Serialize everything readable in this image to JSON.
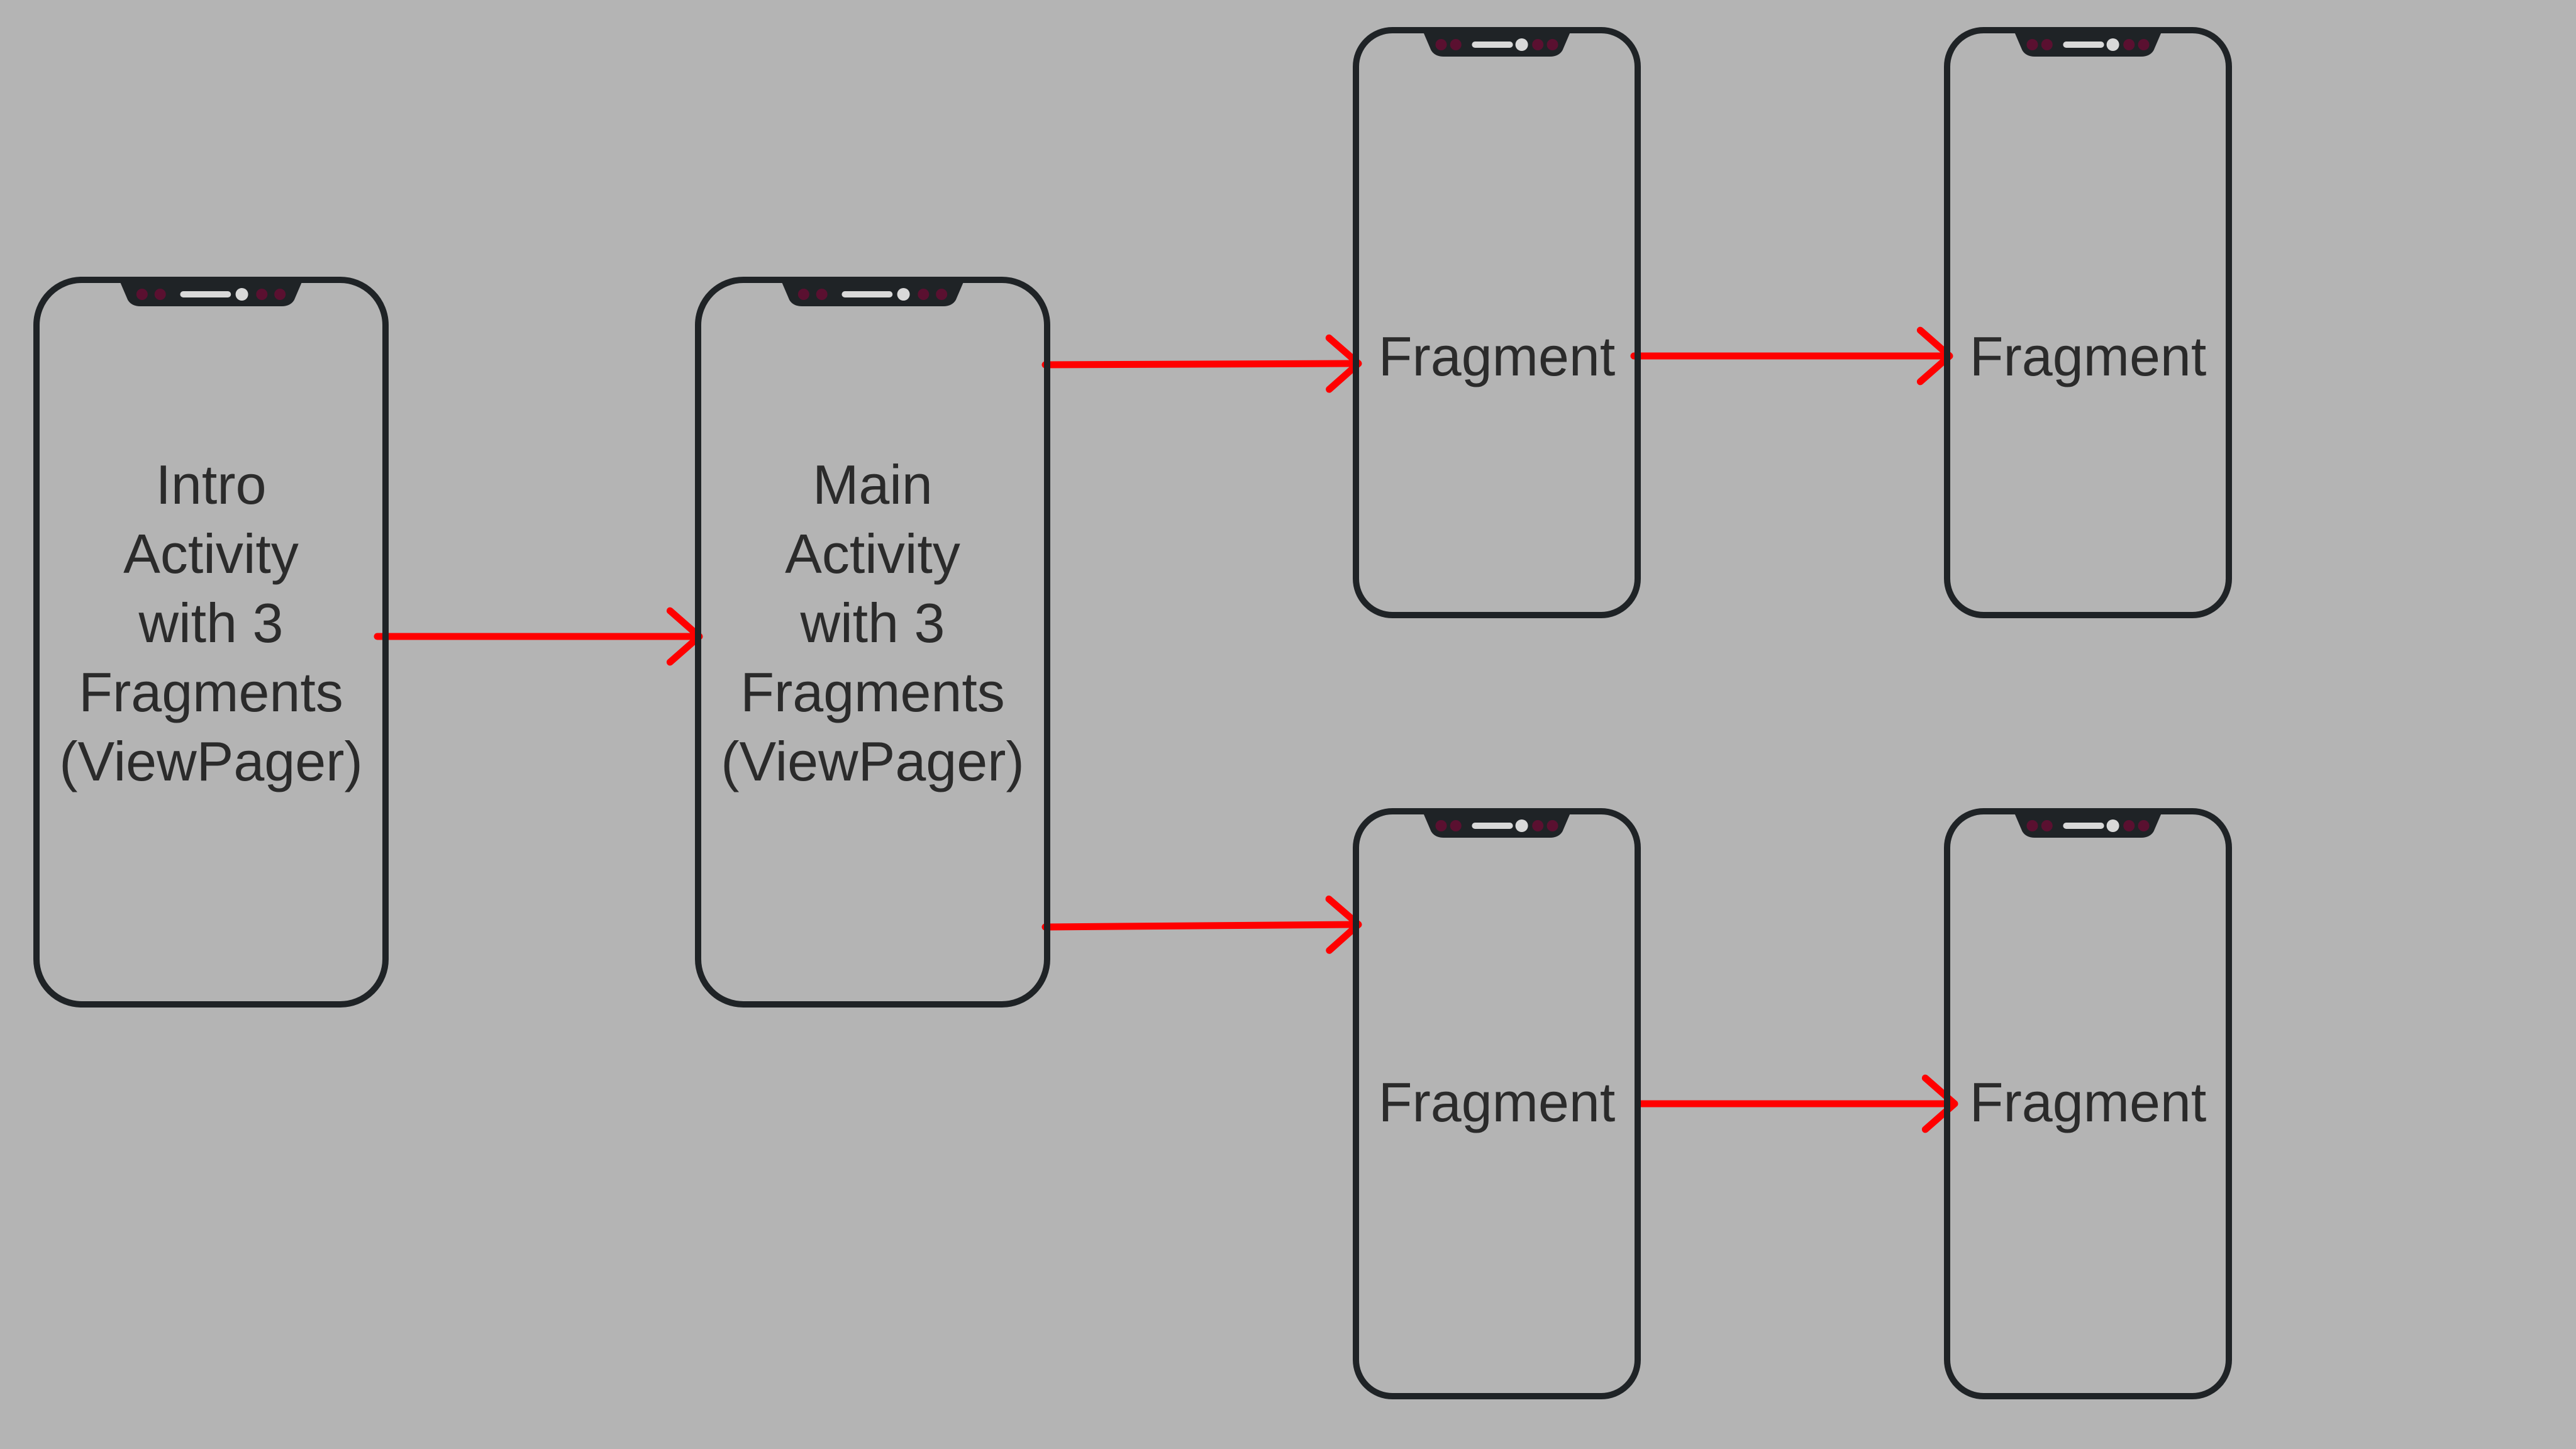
{
  "colors": {
    "background": "#b4b4b4",
    "phone_frame": "#1f2326",
    "notch": "#1f2326",
    "notch_accent": "#5a1030",
    "speaker": "#d9d9d9",
    "arrow": "#ff0000",
    "text": "#2b2b2b"
  },
  "nodes": [
    {
      "id": "intro",
      "lines": [
        "Intro",
        "Activity",
        "with 3",
        "Fragments",
        "(ViewPager)"
      ]
    },
    {
      "id": "main",
      "lines": [
        "Main",
        "Activity",
        "with 3",
        "Fragments",
        "(ViewPager)"
      ]
    },
    {
      "id": "frag-top-1",
      "lines": [
        "Fragment"
      ]
    },
    {
      "id": "frag-top-2",
      "lines": [
        "Fragment"
      ]
    },
    {
      "id": "frag-bottom-1",
      "lines": [
        "Fragment"
      ]
    },
    {
      "id": "frag-bottom-2",
      "lines": [
        "Fragment"
      ]
    }
  ],
  "edges": [
    {
      "from": "intro",
      "to": "main"
    },
    {
      "from": "main",
      "to": "frag-top-1"
    },
    {
      "from": "main",
      "to": "frag-bottom-1"
    },
    {
      "from": "frag-top-1",
      "to": "frag-top-2"
    },
    {
      "from": "frag-bottom-1",
      "to": "frag-bottom-2"
    }
  ]
}
